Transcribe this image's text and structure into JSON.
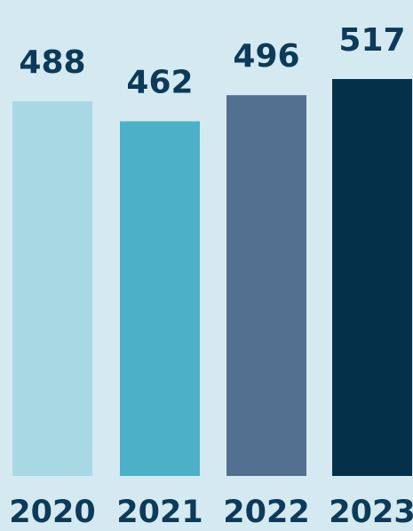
{
  "chart_data": {
    "type": "bar",
    "categories": [
      "2020",
      "2021",
      "2022",
      "2023"
    ],
    "values": [
      488,
      462,
      496,
      517
    ],
    "data_labels": [
      "488",
      "462",
      "496",
      "517"
    ],
    "bar_colors": [
      "#a7d8e4",
      "#4cb0c8",
      "#52708f",
      "#05304a"
    ],
    "label_color": "#0c3a5a",
    "background": "#d4eaf0",
    "title": "",
    "xlabel": "",
    "ylabel": "",
    "ylim": [
      0,
      517
    ],
    "grid": false,
    "legend": "none"
  }
}
